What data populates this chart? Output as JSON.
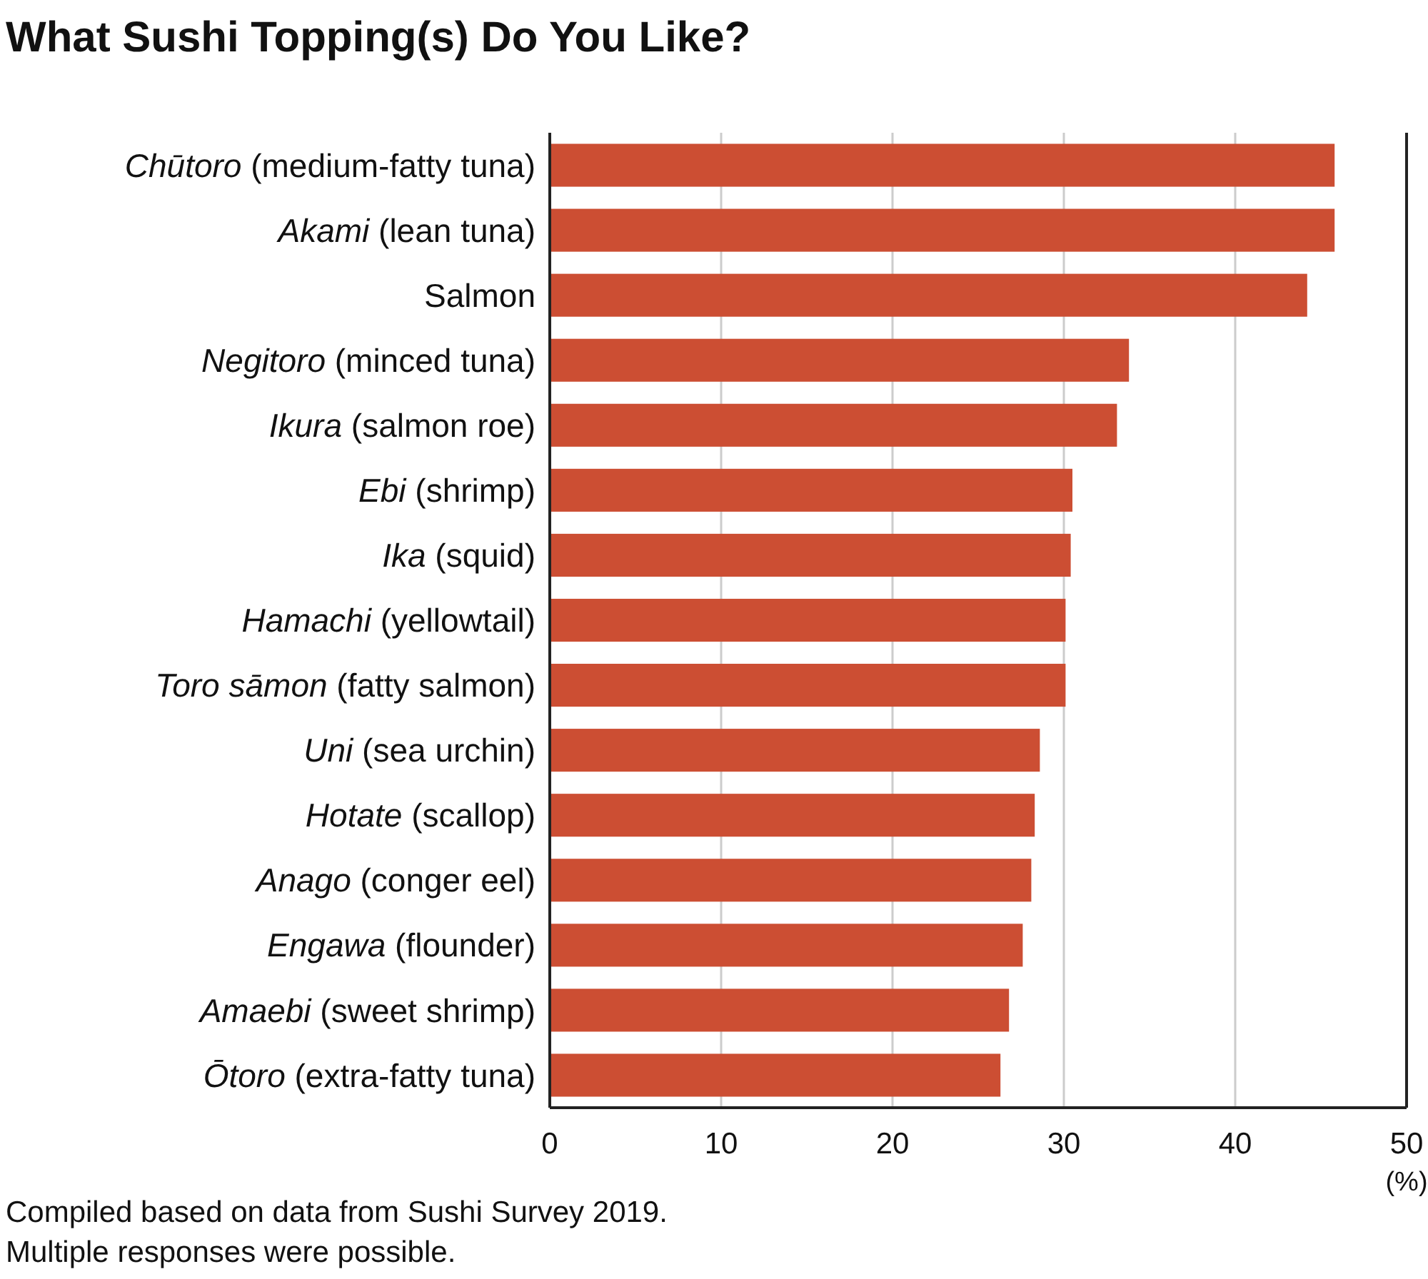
{
  "chart_data": {
    "type": "bar",
    "orientation": "horizontal",
    "title": "What Sushi Topping(s) Do You Like?",
    "categories": [
      "Chūtoro (medium-fatty tuna)",
      "Akami (lean tuna)",
      "Salmon",
      "Negitoro (minced tuna)",
      "Ikura (salmon roe)",
      "Ebi (shrimp)",
      "Ika (squid)",
      "Hamachi (yellowtail)",
      "Toro sāmon (fatty salmon)",
      "Uni (sea urchin)",
      "Hotate (scallop)",
      "Anago (conger eel)",
      "Engawa (flounder)",
      "Amaebi (sweet shrimp)",
      "Ōtoro (extra-fatty tuna)"
    ],
    "values": [
      45.8,
      45.8,
      44.2,
      33.8,
      33.1,
      30.5,
      30.4,
      30.1,
      30.1,
      28.6,
      28.3,
      28.1,
      27.6,
      26.8,
      26.3
    ],
    "color": "#cc4e33",
    "xlim": [
      0,
      50
    ],
    "xticks": [
      0,
      10,
      20,
      30,
      40,
      50
    ],
    "xlabel": "(%)",
    "grid": "x",
    "annotations": [
      "Compiled based on data from Sushi Survey 2019. Multiple responses were possible."
    ]
  }
}
